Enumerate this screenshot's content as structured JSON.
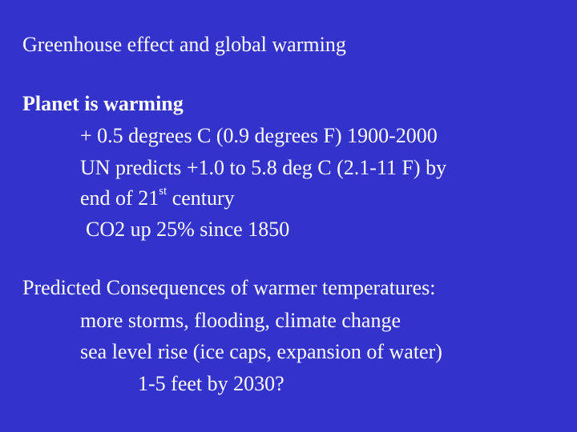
{
  "slide": {
    "title": "Greenhouse effect and global warming",
    "section1": {
      "heading": "Planet is warming",
      "bullets": [
        "+ 0.5 degrees C (0.9 degrees F) 1900-2000",
        "UN predicts +1.0 to 5.8 deg C (2.1-11 F) by"
      ],
      "continuation_pre": "end of 21",
      "continuation_sup": "st",
      "continuation_post": " century",
      "co2": "CO2 up 25% since 1850"
    },
    "section2": {
      "heading": "Predicted Consequences of warmer temperatures:",
      "items": [
        "more storms, flooding, climate change",
        "sea level rise (ice caps, expansion of water)"
      ],
      "subitem": "1-5 feet by 2030?"
    },
    "colors": {
      "background": "#3333cc",
      "text": "#ffffff"
    }
  }
}
